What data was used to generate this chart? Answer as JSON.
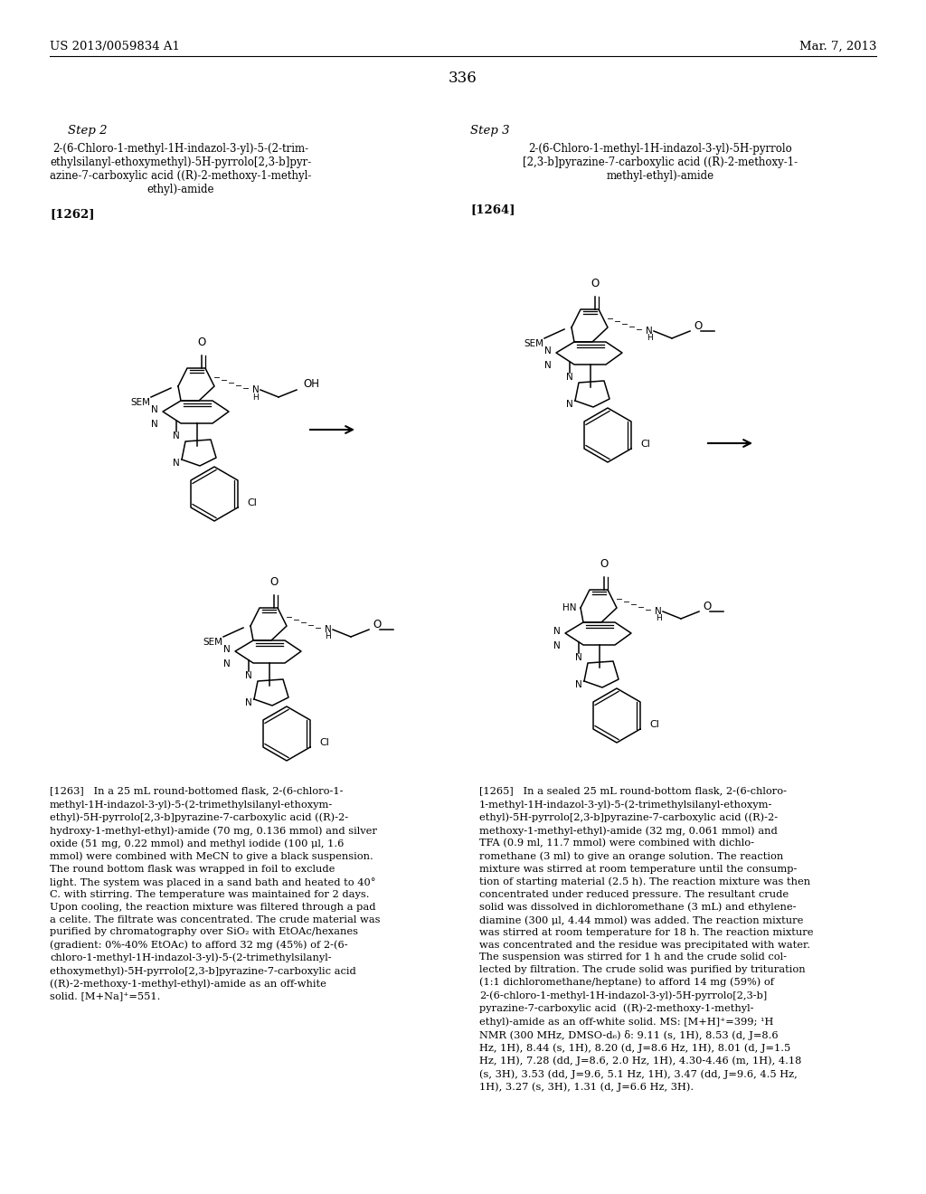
{
  "page_number": "336",
  "header_left": "US 2013/0059834 A1",
  "header_right": "Mar. 7, 2013",
  "background_color": "#ffffff",
  "text_color": "#000000",
  "step2_label": "Step 2",
  "step3_label": "Step 3",
  "compound1262_label": "[1262]",
  "compound1264_label": "[1264]",
  "lines1262_title": [
    "2-(6-Chloro-1-methyl-1H-indazol-3-yl)-5-(2-trim-",
    "ethylsilanyl-ethoxymethyl)-5H-pyrrolo[2,3-b]pyr-",
    "azine-7-carboxylic acid ((R)-2-methoxy-1-methyl-",
    "ethyl)-amide"
  ],
  "lines1264_title": [
    "2-(6-Chloro-1-methyl-1H-indazol-3-yl)-5H-pyrrolo",
    "[2,3-b]pyrazine-7-carboxylic acid ((R)-2-methoxy-1-",
    "methyl-ethyl)-amide"
  ],
  "lines1263": [
    "[1263]   In a 25 mL round-bottomed flask, 2-(6-chloro-1-",
    "methyl-1H-indazol-3-yl)-5-(2-trimethylsilanyl-ethoxym-",
    "ethyl)-5H-pyrrolo[2,3-b]pyrazine-7-carboxylic acid ((R)-2-",
    "hydroxy-1-methyl-ethyl)-amide (70 mg, 0.136 mmol) and silver",
    "oxide (51 mg, 0.22 mmol) and methyl iodide (100 μl, 1.6",
    "mmol) were combined with MeCN to give a black suspension.",
    "The round bottom flask was wrapped in foil to exclude",
    "light. The system was placed in a sand bath and heated to 40°",
    "C. with stirring. The temperature was maintained for 2 days.",
    "Upon cooling, the reaction mixture was filtered through a pad",
    "a celite. The filtrate was concentrated. The crude material was",
    "purified by chromatography over SiO₂ with EtOAc/hexanes",
    "(gradient: 0%-40% EtOAc) to afford 32 mg (45%) of 2-(6-",
    "chloro-1-methyl-1H-indazol-3-yl)-5-(2-trimethylsilanyl-",
    "ethoxymethyl)-5H-pyrrolo[2,3-b]pyrazine-7-carboxylic acid",
    "((R)-2-methoxy-1-methyl-ethyl)-amide as an off-white",
    "solid. [M+Na]⁺=551."
  ],
  "lines1265": [
    "[1265]   In a sealed 25 mL round-bottom flask, 2-(6-chloro-",
    "1-methyl-1H-indazol-3-yl)-5-(2-trimethylsilanyl-ethoxym-",
    "ethyl)-5H-pyrrolo[2,3-b]pyrazine-7-carboxylic acid ((R)-2-",
    "methoxy-1-methyl-ethyl)-amide (32 mg, 0.061 mmol) and",
    "TFA (0.9 ml, 11.7 mmol) were combined with dichlo-",
    "romethane (3 ml) to give an orange solution. The reaction",
    "mixture was stirred at room temperature until the consump-",
    "tion of starting material (2.5 h). The reaction mixture was then",
    "concentrated under reduced pressure. The resultant crude",
    "solid was dissolved in dichloromethane (3 mL) and ethylene-",
    "diamine (300 μl, 4.44 mmol) was added. The reaction mixture",
    "was stirred at room temperature for 18 h. The reaction mixture",
    "was concentrated and the residue was precipitated with water.",
    "The suspension was stirred for 1 h and the crude solid col-",
    "lected by filtration. The crude solid was purified by trituration",
    "(1:1 dichloromethane/heptane) to afford 14 mg (59%) of",
    "2-(6-chloro-1-methyl-1H-indazol-3-yl)-5H-pyrrolo[2,3-b]",
    "pyrazine-7-carboxylic acid  ((R)-2-methoxy-1-methyl-",
    "ethyl)-amide as an off-white solid. MS: [M+H]⁺=399; ¹H",
    "NMR (300 MHz, DMSO-d₆) δ: 9.11 (s, 1H), 8.53 (d, J=8.6",
    "Hz, 1H), 8.44 (s, 1H), 8.20 (d, J=8.6 Hz, 1H), 8.01 (d, J=1.5",
    "Hz, 1H), 7.28 (dd, J=8.6, 2.0 Hz, 1H), 4.30-4.46 (m, 1H), 4.18",
    "(s, 3H), 3.53 (dd, J=9.6, 5.1 Hz, 1H), 3.47 (dd, J=9.6, 4.5 Hz,",
    "1H), 3.27 (s, 3H), 1.31 (d, J=6.6 Hz, 3H)."
  ]
}
